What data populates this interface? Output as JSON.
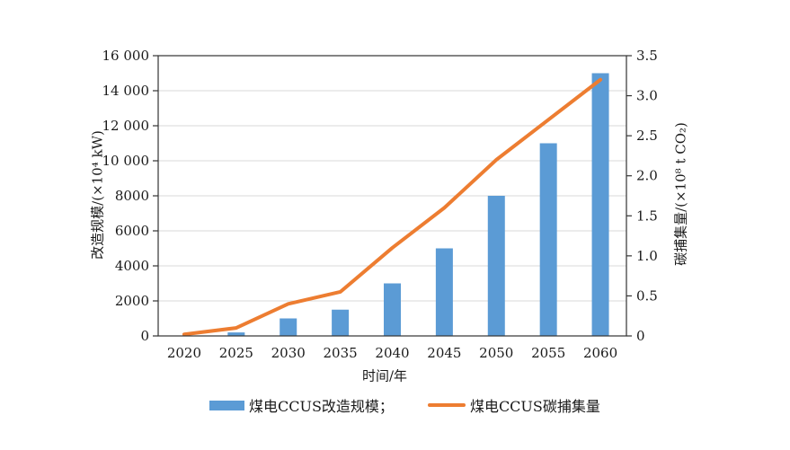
{
  "chart_data": {
    "type": "bar+line combo",
    "title": "",
    "categories": [
      "2020",
      "2025",
      "2030",
      "2035",
      "2040",
      "2045",
      "2050",
      "2055",
      "2060"
    ],
    "series": [
      {
        "name": "煤电CCUS改造规模；",
        "type": "bar",
        "axis": "left",
        "color": "#5B9BD5",
        "values": [
          0,
          200,
          1000,
          1500,
          3000,
          5000,
          8000,
          11000,
          15000
        ]
      },
      {
        "name": "煤电CCUS碳捕集量",
        "type": "line",
        "axis": "right",
        "color": "#ED7D31",
        "values": [
          0.02,
          0.1,
          0.4,
          0.55,
          1.1,
          1.6,
          2.2,
          2.7,
          3.2
        ]
      }
    ],
    "x_axis": {
      "label": "时间/年",
      "tick_labels": [
        "2020",
        "2025",
        "2030",
        "2035",
        "2040",
        "2045",
        "2050",
        "2055",
        "2060"
      ]
    },
    "left_axis": {
      "label": "改造规模/(×10⁴ kW)",
      "min": 0,
      "max": 16000,
      "tick_interval": 2000,
      "tick_labels": [
        "0",
        "2000",
        "4000",
        "6000",
        "8000",
        "10 000",
        "12 000",
        "14 000",
        "16 000"
      ]
    },
    "right_axis": {
      "label": "碳捕集量/(×10⁸ t CO₂)",
      "min": 0,
      "max": 3.5,
      "tick_interval": 0.5,
      "tick_labels": [
        "0",
        "0.5",
        "1.0",
        "1.5",
        "2.0",
        "2.5",
        "3.0",
        "3.5"
      ]
    },
    "grid": "horizontal-light-gray",
    "legend_position": "bottom",
    "colors": {
      "bar": "#5B9BD5",
      "line": "#ED7D31",
      "gridline": "#d9d9d9",
      "frame": "#333333",
      "text": "#1a1a1a",
      "background": "#ffffff"
    }
  }
}
